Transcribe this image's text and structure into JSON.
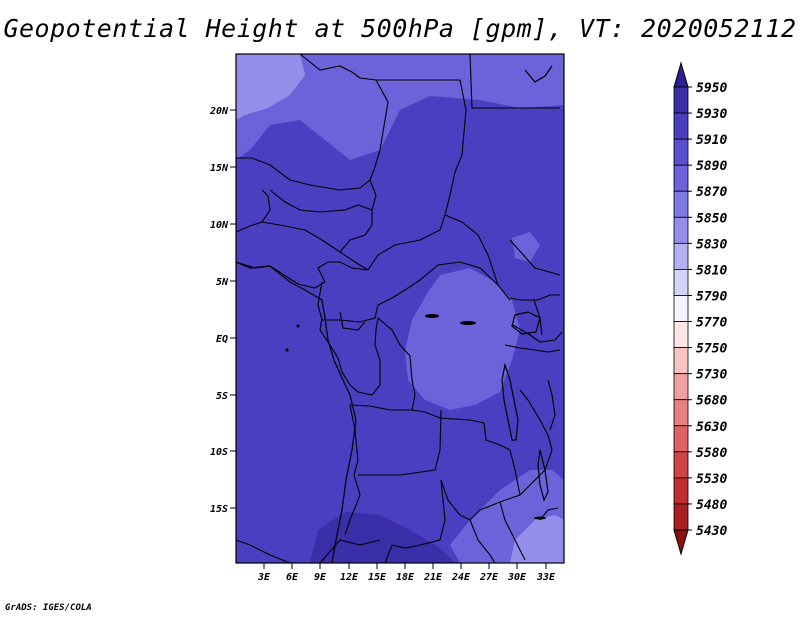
{
  "title": "Geopotential Height at 500hPa [gpm], VT: 2020052112",
  "credit": "GrADS: IGES/COLA",
  "lat_labels": [
    "20N",
    "15N",
    "10N",
    "5N",
    "EQ",
    "5S",
    "10S",
    "15S"
  ],
  "lon_labels": [
    "3E",
    "6E",
    "9E",
    "12E",
    "15E",
    "18E",
    "21E",
    "24E",
    "27E",
    "30E",
    "33E"
  ],
  "colorbar": {
    "levels": [
      "5950",
      "5930",
      "5910",
      "5890",
      "5870",
      "5850",
      "5830",
      "5810",
      "5790",
      "5770",
      "5750",
      "5730",
      "5680",
      "5630",
      "5580",
      "5530",
      "5480",
      "5430"
    ],
    "colors": [
      "#2c1f96",
      "#3a2fa8",
      "#4a3fc0",
      "#5a4fcf",
      "#6c62da",
      "#8078e3",
      "#958feb",
      "#b4b0f2",
      "#d4d2f8",
      "#f4f4fe",
      "#fde6e6",
      "#f8c4c4",
      "#f0a0a0",
      "#e88080",
      "#de6262",
      "#d24545",
      "#c03030",
      "#a82020",
      "#8c1010"
    ]
  },
  "colors": {
    "base_field": "#4a3fc0",
    "lighter_field": "#6c62da",
    "lightest_field": "#958feb",
    "darker_field": "#3a2fa8",
    "boundary": "#000000"
  }
}
